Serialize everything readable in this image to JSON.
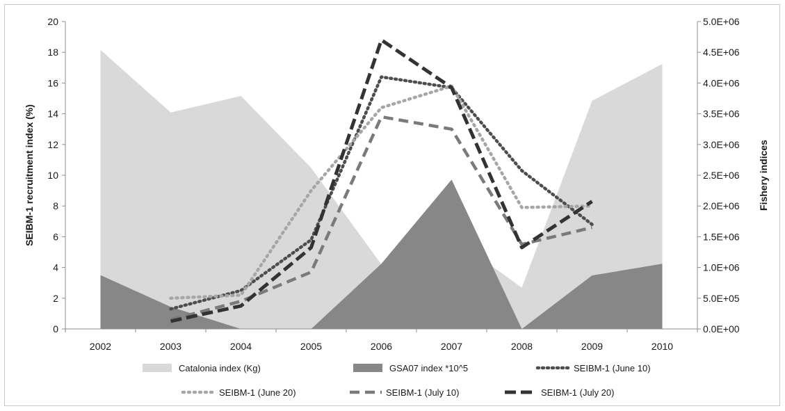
{
  "chart_data": {
    "type": "area",
    "x": [
      "2002",
      "2003",
      "2004",
      "2005",
      "2006",
      "2007",
      "2008",
      "2009",
      "2010"
    ],
    "ylabel": "SEIBM-1 recruitment index (%)",
    "y2label": "Fishery indices",
    "ylim": [
      0,
      20
    ],
    "y2lim": [
      0,
      5000000
    ],
    "yticks": [
      "0",
      "2",
      "4",
      "6",
      "8",
      "10",
      "12",
      "14",
      "16",
      "18",
      "20"
    ],
    "y2ticks": [
      "0.0E+00",
      "5.0E+05",
      "1.0E+06",
      "1.5E+06",
      "2.0E+06",
      "2.5E+06",
      "3.0E+06",
      "3.5E+06",
      "4.0E+06",
      "4.5E+06",
      "5.0E+06"
    ],
    "grid": false,
    "legend_position": "bottom",
    "series": [
      {
        "name": "Catalonia index (Kg)",
        "axis": "right",
        "style": "area",
        "color": "#d9d9d9",
        "values": [
          4540000,
          3520000,
          3790000,
          2620000,
          1050000,
          1500000,
          670000,
          3710000,
          4310000
        ]
      },
      {
        "name": "GSA07 index *10^5",
        "axis": "right",
        "style": "area",
        "color": "#878787",
        "values": [
          875000,
          360000,
          0,
          0,
          1060000,
          2430000,
          0,
          870000,
          1060000
        ]
      },
      {
        "name": "SEIBM-1 (June 10)",
        "axis": "left",
        "style": "dotted",
        "color": "#4d4d4d",
        "values": [
          null,
          1.3,
          2.5,
          5.8,
          16.4,
          15.7,
          10.3,
          6.8,
          null
        ]
      },
      {
        "name": "SEIBM-1 (June 20)",
        "axis": "left",
        "style": "dotted-light",
        "color": "#a6a6a6",
        "values": [
          null,
          2.0,
          2.2,
          9.0,
          14.4,
          15.8,
          7.9,
          8.0,
          null
        ]
      },
      {
        "name": "SEIBM-1 (July 10)",
        "axis": "left",
        "style": "dashed",
        "color": "#7a7a7a",
        "values": [
          null,
          0.6,
          1.8,
          3.7,
          13.8,
          13.0,
          5.5,
          6.6,
          null
        ]
      },
      {
        "name": "SEIBM-1 (July 20)",
        "axis": "left",
        "style": "dashed-heavy",
        "color": "#333333",
        "values": [
          null,
          0.5,
          1.5,
          5.3,
          18.8,
          15.7,
          5.3,
          8.3,
          null
        ]
      }
    ]
  }
}
